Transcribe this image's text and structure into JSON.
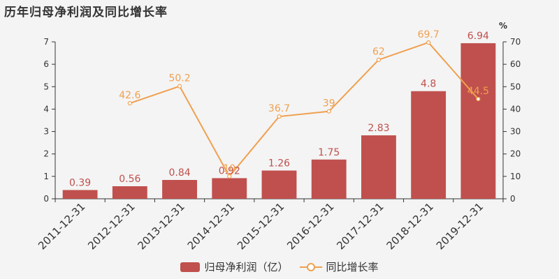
{
  "chart_data": {
    "type": "bar",
    "title": "历年归母净利润及同比增长率",
    "categories": [
      "2011-12-31",
      "2012-12-31",
      "2013-12-31",
      "2014-12-31",
      "2015-12-31",
      "2016-12-31",
      "2017-12-31",
      "2018-12-31",
      "2019-12-31"
    ],
    "series": [
      {
        "name": "归母净利润（亿）",
        "type": "bar",
        "axis": "left",
        "color": "#c0504d",
        "values": [
          0.39,
          0.56,
          0.84,
          0.92,
          1.26,
          1.75,
          2.83,
          4.8,
          6.94
        ],
        "labels": [
          "0.39",
          "0.56",
          "0.84",
          "0.92",
          "1.26",
          "1.75",
          "2.83",
          "4.8",
          "6.94"
        ]
      },
      {
        "name": "同比增长率",
        "type": "line",
        "axis": "right",
        "color": "#f0a050",
        "values": [
          null,
          42.6,
          50.2,
          10,
          36.7,
          39,
          62,
          69.7,
          44.5
        ],
        "labels": [
          "",
          "42.6",
          "50.2",
          "10",
          "36.7",
          "39",
          "62",
          "69.7",
          "44.5"
        ]
      }
    ],
    "y_left": {
      "min": 0,
      "max": 7,
      "ticks": [
        "0",
        "1",
        "2",
        "3",
        "4",
        "5",
        "6",
        "7"
      ]
    },
    "y_right": {
      "min": 0,
      "max": 70,
      "ticks": [
        "0",
        "10",
        "20",
        "30",
        "40",
        "50",
        "60",
        "70"
      ],
      "unit": "%"
    },
    "grid": false,
    "legend_position": "bottom"
  },
  "legend": {
    "bar_label": "归母净利润（亿）",
    "line_label": "同比增长率"
  },
  "colors": {
    "bar": "#c0504d",
    "line": "#f0a050",
    "axis_text": "#333333"
  }
}
